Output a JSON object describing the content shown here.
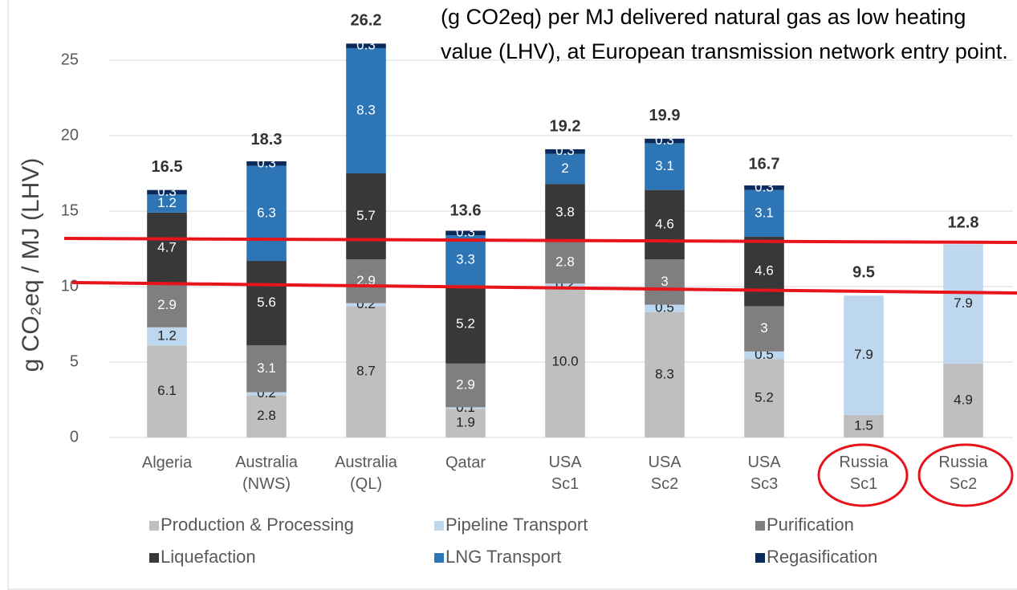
{
  "chart_data": {
    "type": "stacked_bar",
    "annotation": "(g CO2eq) per MJ delivered natural gas as low heating value (LHV), at European transmission network entry point.",
    "ylabel": "g CO₂eq / MJ (LHV)",
    "categories": [
      "Algeria",
      "Australia (NWS)",
      "Australia (QL)",
      "Qatar",
      "USA Sc1",
      "USA Sc2",
      "USA Sc3",
      "Russia Sc1",
      "Russia Sc2"
    ],
    "series": [
      {
        "name": "Production & Processing",
        "color": "#bfbfbf",
        "values": [
          6.1,
          2.8,
          8.7,
          1.9,
          10,
          8.3,
          5.2,
          1.5,
          4.9
        ],
        "value_labels": [
          "6.1",
          "2.8",
          "8.7",
          "1.9",
          "10.0",
          "8.3",
          "5.2",
          "1.5",
          "4.9"
        ]
      },
      {
        "name": "Pipeline Transport",
        "color": "#bdd7ee",
        "values": [
          1.2,
          0.2,
          0.2,
          0.1,
          0.2,
          0.5,
          0.5,
          7.9,
          7.9
        ]
      },
      {
        "name": "Purification",
        "color": "#7f7f7f",
        "values": [
          2.9,
          3.1,
          2.9,
          2.9,
          2.8,
          3.0,
          3.0,
          null,
          null
        ]
      },
      {
        "name": "Liquefaction",
        "color": "#383838",
        "values": [
          4.7,
          5.6,
          5.7,
          5.2,
          3.8,
          4.6,
          4.6,
          null,
          null
        ]
      },
      {
        "name": "LNG Transport",
        "color": "#2e75b6",
        "values": [
          1.2,
          6.3,
          8.3,
          3.3,
          2.0,
          3.1,
          3.1,
          null,
          null
        ]
      },
      {
        "name": "Regasification",
        "color": "#0b2a5c",
        "values": [
          0.3,
          0.3,
          0.3,
          0.3,
          0.3,
          0.3,
          0.3,
          null,
          null
        ]
      }
    ],
    "totals": [
      16.5,
      18.3,
      26.2,
      13.6,
      19.2,
      19.9,
      16.7,
      9.5,
      12.8
    ],
    "ylim": [
      0,
      27
    ],
    "yticks": [
      0,
      5,
      10,
      15,
      20,
      25
    ],
    "grid": true
  }
}
